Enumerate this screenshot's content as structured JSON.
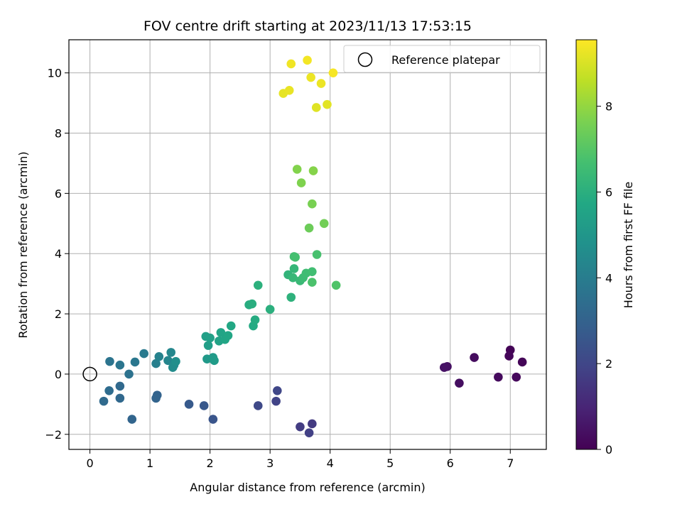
{
  "chart_data": {
    "type": "scatter",
    "title": "FOV centre drift starting at 2023/11/13 17:53:15",
    "xlabel": "Angular distance from reference (arcmin)",
    "ylabel": "Rotation from reference (arcmin)",
    "xlim": [
      -0.35,
      7.6
    ],
    "ylim": [
      -2.5,
      11.1
    ],
    "xticks": [
      0,
      1,
      2,
      3,
      4,
      5,
      6,
      7
    ],
    "yticks": [
      -2,
      0,
      2,
      4,
      6,
      8,
      10
    ],
    "grid": true,
    "legend": {
      "placement": "top-right",
      "entries": [
        "Reference platepar"
      ]
    },
    "reference_point": {
      "x": 0,
      "y": 0,
      "marker": "open-circle"
    },
    "colorbar": {
      "label": "Hours from first FF file",
      "colormap": "viridis",
      "range": [
        0,
        9.55
      ],
      "ticks": [
        0,
        2,
        4,
        6,
        8
      ]
    },
    "points": [
      [
        7.0,
        0.8,
        0.05
      ],
      [
        7.2,
        0.4,
        0.1
      ],
      [
        6.98,
        0.6,
        0.15
      ],
      [
        7.1,
        -0.1,
        0.2
      ],
      [
        6.8,
        -0.1,
        0.25
      ],
      [
        6.4,
        0.55,
        0.3
      ],
      [
        6.15,
        -0.3,
        0.35
      ],
      [
        5.95,
        0.25,
        0.4
      ],
      [
        5.9,
        0.22,
        0.45
      ],
      [
        3.7,
        -1.65,
        1.6
      ],
      [
        3.5,
        -1.75,
        1.7
      ],
      [
        3.65,
        -1.95,
        1.8
      ],
      [
        3.1,
        -0.9,
        1.9
      ],
      [
        3.12,
        -0.55,
        2.0
      ],
      [
        2.8,
        -1.05,
        2.1
      ],
      [
        2.05,
        -1.5,
        2.5
      ],
      [
        1.9,
        -1.05,
        2.6
      ],
      [
        1.65,
        -1.0,
        2.7
      ],
      [
        1.12,
        -0.7,
        3.0
      ],
      [
        1.1,
        -0.8,
        3.05
      ],
      [
        0.7,
        -1.5,
        3.1
      ],
      [
        0.5,
        -0.8,
        3.2
      ],
      [
        0.5,
        -0.4,
        3.25
      ],
      [
        0.23,
        -0.9,
        3.3
      ],
      [
        0.32,
        -0.55,
        3.35
      ],
      [
        0.65,
        0.0,
        3.6
      ],
      [
        0.33,
        0.42,
        3.65
      ],
      [
        0.5,
        0.3,
        3.7
      ],
      [
        0.75,
        0.4,
        3.8
      ],
      [
        0.9,
        0.68,
        3.9
      ],
      [
        1.1,
        0.35,
        4.1
      ],
      [
        1.15,
        0.58,
        4.2
      ],
      [
        1.3,
        0.45,
        4.3
      ],
      [
        1.35,
        0.72,
        4.4
      ],
      [
        1.4,
        0.3,
        4.5
      ],
      [
        1.38,
        0.22,
        4.6
      ],
      [
        1.43,
        0.42,
        4.7
      ],
      [
        1.95,
        0.5,
        5.1
      ],
      [
        2.05,
        0.55,
        5.15
      ],
      [
        2.07,
        0.45,
        5.2
      ],
      [
        1.97,
        0.95,
        5.3
      ],
      [
        1.93,
        1.25,
        5.35
      ],
      [
        2.0,
        1.2,
        5.4
      ],
      [
        2.15,
        1.1,
        5.5
      ],
      [
        2.18,
        1.38,
        5.55
      ],
      [
        2.25,
        1.15,
        5.6
      ],
      [
        2.3,
        1.28,
        5.65
      ],
      [
        2.35,
        1.6,
        5.7
      ],
      [
        2.72,
        1.6,
        5.8
      ],
      [
        2.75,
        1.8,
        5.85
      ],
      [
        2.65,
        2.3,
        5.9
      ],
      [
        2.7,
        2.33,
        5.95
      ],
      [
        3.0,
        2.15,
        6.0
      ],
      [
        2.8,
        2.95,
        6.05
      ],
      [
        3.35,
        2.55,
        6.1
      ],
      [
        3.3,
        3.3,
        6.2
      ],
      [
        3.4,
        3.5,
        6.3
      ],
      [
        3.38,
        3.2,
        6.35
      ],
      [
        3.5,
        3.1,
        6.4
      ],
      [
        3.55,
        3.2,
        6.5
      ],
      [
        3.6,
        3.35,
        6.55
      ],
      [
        3.7,
        3.4,
        6.6
      ],
      [
        3.4,
        3.9,
        6.65
      ],
      [
        3.42,
        3.88,
        6.7
      ],
      [
        3.78,
        3.97,
        6.75
      ],
      [
        3.7,
        3.05,
        6.8
      ],
      [
        4.1,
        2.95,
        6.9
      ],
      [
        3.65,
        4.85,
        7.4
      ],
      [
        3.9,
        5.0,
        7.5
      ],
      [
        3.7,
        5.65,
        7.6
      ],
      [
        3.52,
        6.35,
        7.7
      ],
      [
        3.45,
        6.8,
        7.75
      ],
      [
        3.72,
        6.75,
        7.8
      ],
      [
        3.22,
        9.32,
        9.2
      ],
      [
        3.32,
        9.42,
        9.25
      ],
      [
        3.35,
        10.3,
        9.35
      ],
      [
        3.62,
        10.42,
        9.4
      ],
      [
        3.68,
        9.85,
        9.3
      ],
      [
        3.85,
        9.65,
        9.3
      ],
      [
        3.77,
        8.85,
        9.1
      ],
      [
        3.95,
        8.95,
        9.15
      ],
      [
        4.05,
        10.0,
        9.45
      ]
    ]
  }
}
